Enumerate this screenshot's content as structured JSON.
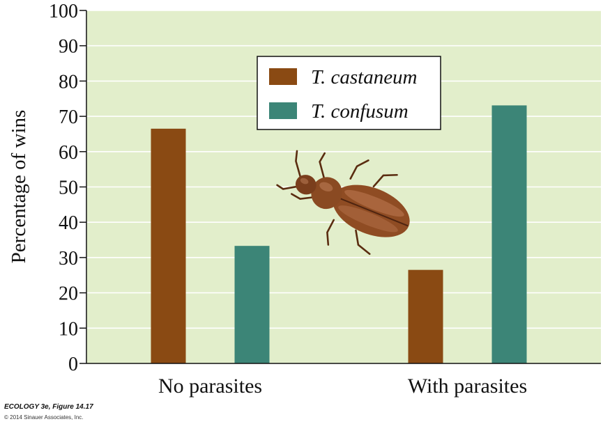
{
  "chart_data": {
    "type": "bar",
    "categories": [
      "No parasites",
      "With parasites"
    ],
    "series": [
      {
        "name": "T. castaneum",
        "values": [
          66.5,
          26.5
        ],
        "color": "#8a4a13"
      },
      {
        "name": "T. confusum",
        "values": [
          33.3,
          73.1
        ],
        "color": "#3c8577"
      }
    ],
    "ylabel": "Percentage of wins",
    "xlabel": "",
    "ylim": [
      0,
      100
    ],
    "yticks": [
      0,
      10,
      20,
      30,
      40,
      50,
      60,
      70,
      80,
      90,
      100
    ],
    "grid": true,
    "legend_position": "top-center",
    "plot_background": "#e2eecb",
    "illustration": "flour-beetle"
  },
  "credit": {
    "title": "ECOLOGY 3e, Figure 14.17",
    "copyright": "© 2014 Sinauer Associates, Inc."
  }
}
